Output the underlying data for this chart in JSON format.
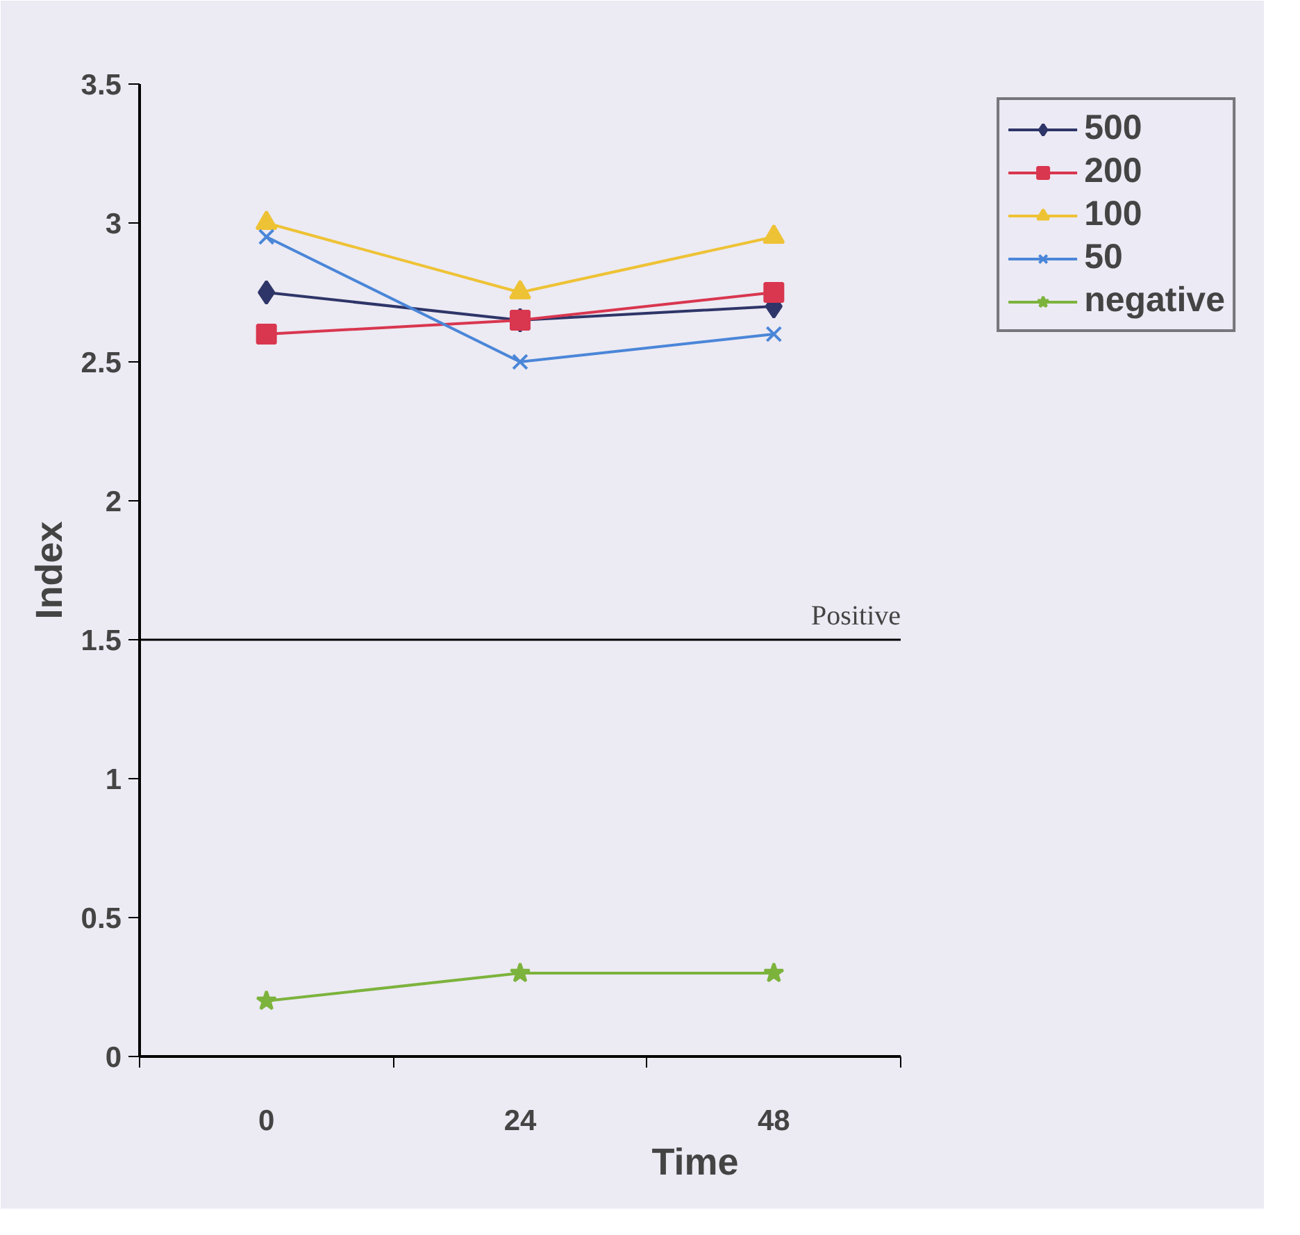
{
  "chart_data": {
    "type": "line",
    "xlabel": "Time",
    "ylabel": "Index",
    "categories": [
      "0",
      "24",
      "48"
    ],
    "ylim": [
      0,
      3.5
    ],
    "yticks": [
      0,
      0.5,
      1,
      1.5,
      2,
      2.5,
      3,
      3.5
    ],
    "series": [
      {
        "name": "500",
        "color": "#2e3568",
        "marker": "diamond",
        "values": [
          2.75,
          2.65,
          2.7
        ]
      },
      {
        "name": "200",
        "color": "#d9364f",
        "marker": "square",
        "values": [
          2.6,
          2.65,
          2.75
        ]
      },
      {
        "name": "100",
        "color": "#eec235",
        "marker": "triangle",
        "values": [
          3.0,
          2.75,
          2.95
        ]
      },
      {
        "name": "50",
        "color": "#4a86d8",
        "marker": "cross",
        "values": [
          2.95,
          2.5,
          2.6
        ]
      },
      {
        "name": "negative",
        "color": "#7cb33c",
        "marker": "star",
        "values": [
          0.2,
          0.3,
          0.3
        ]
      }
    ],
    "ref_lines": [
      {
        "axis": "y",
        "value": 1.5,
        "label": "Positive",
        "color": "#000000"
      }
    ],
    "grid": false,
    "legend": "top right"
  }
}
